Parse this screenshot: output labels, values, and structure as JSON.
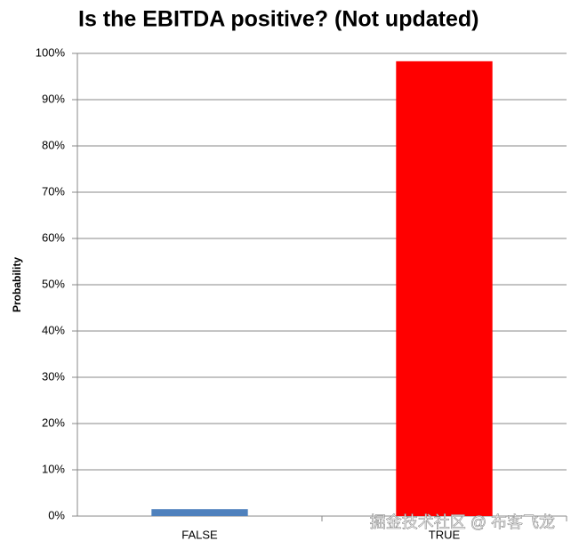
{
  "chart_data": {
    "type": "bar",
    "title": "Is the EBITDA positive? (Not updated)",
    "y_label": "Probability",
    "categories": [
      "FALSE",
      "TRUE"
    ],
    "values": [
      1.5,
      98.3
    ],
    "colors": [
      "#4f81bd",
      "#ff0000"
    ],
    "ylim": [
      0,
      100
    ],
    "yticks": [
      {
        "value": 0,
        "label": "0%"
      },
      {
        "value": 10,
        "label": "10%"
      },
      {
        "value": 20,
        "label": "20%"
      },
      {
        "value": 30,
        "label": "30%"
      },
      {
        "value": 40,
        "label": "40%"
      },
      {
        "value": 50,
        "label": "50%"
      },
      {
        "value": 60,
        "label": "60%"
      },
      {
        "value": 70,
        "label": "70%"
      },
      {
        "value": 80,
        "label": "80%"
      },
      {
        "value": 90,
        "label": "90%"
      },
      {
        "value": 100,
        "label": "100%"
      }
    ],
    "grid": true,
    "watermark": "掘金技术社区 @ 布客飞龙"
  }
}
